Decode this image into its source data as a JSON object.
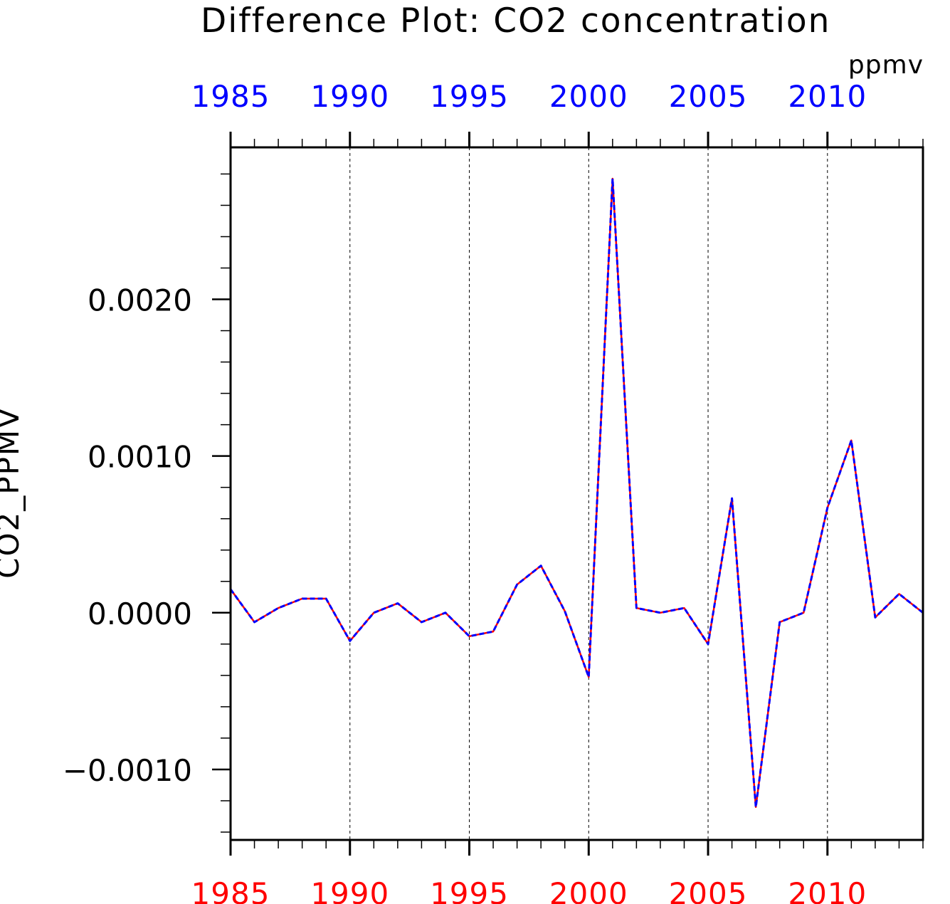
{
  "chart_data": {
    "type": "line",
    "title": "Difference Plot: CO2 concentration",
    "units": "ppmv",
    "ylabel": "CO2_PPMV",
    "xlabel": "",
    "xlim": [
      1985,
      2014
    ],
    "ylim": [
      -0.00145,
      0.00297
    ],
    "x_ticks": [
      1985,
      1990,
      1995,
      2000,
      2005,
      2010
    ],
    "x_tick_labels": [
      "1985",
      "1990",
      "1995",
      "2000",
      "2005",
      "2010"
    ],
    "y_ticks": [
      -0.001,
      0.0,
      0.001,
      0.002
    ],
    "y_tick_labels": [
      "−0.0010",
      "0.0000",
      "0.0010",
      "0.0020"
    ],
    "vertical_grid": true,
    "top_axis_color": "#0000ff",
    "bottom_axis_color": "#ff0000",
    "x": [
      1985,
      1986,
      1987,
      1988,
      1989,
      1990,
      1991,
      1992,
      1993,
      1994,
      1995,
      1996,
      1997,
      1998,
      1999,
      2000,
      2001,
      2002,
      2003,
      2004,
      2005,
      2006,
      2007,
      2008,
      2009,
      2010,
      2011,
      2012,
      2013,
      2014
    ],
    "series": [
      {
        "color": "#ff0000",
        "style": "solid",
        "values": [
          0.00015,
          -6e-05,
          3e-05,
          9e-05,
          9e-05,
          -0.00018,
          0.0,
          6e-05,
          -6e-05,
          0.0,
          -0.00015,
          -0.00012,
          0.00018,
          0.0003,
          1e-05,
          -0.00041,
          0.00277,
          3e-05,
          0.0,
          3e-05,
          -0.0002,
          0.00073,
          -0.00124,
          -6e-05,
          0.0,
          0.00067,
          0.0011,
          -3e-05,
          0.00012,
          0.0
        ]
      },
      {
        "color": "#0000ff",
        "style": "dashed",
        "values": [
          0.00015,
          -6e-05,
          3e-05,
          9e-05,
          9e-05,
          -0.00018,
          0.0,
          6e-05,
          -6e-05,
          0.0,
          -0.00015,
          -0.00012,
          0.00018,
          0.0003,
          1e-05,
          -0.00041,
          0.00277,
          3e-05,
          0.0,
          3e-05,
          -0.0002,
          0.00073,
          -0.00124,
          -6e-05,
          0.0,
          0.00067,
          0.0011,
          -3e-05,
          0.00012,
          0.0
        ]
      }
    ]
  }
}
